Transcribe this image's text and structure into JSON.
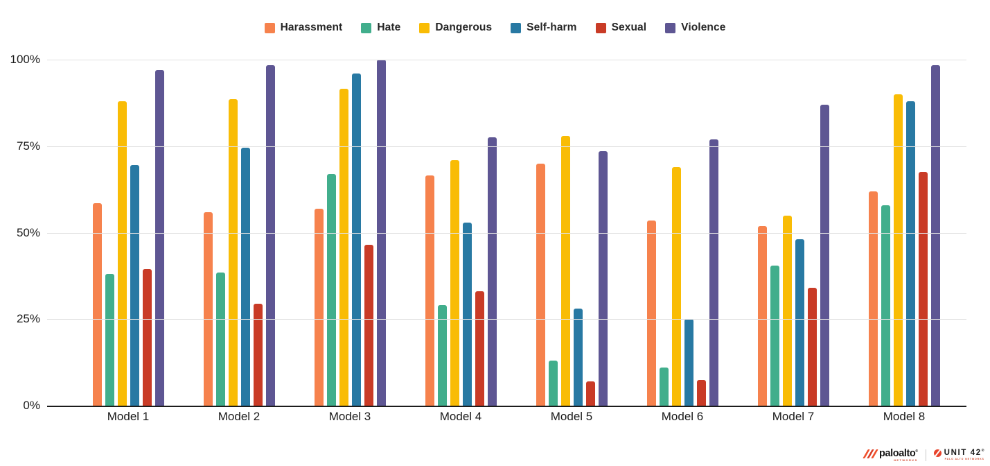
{
  "chart_data": {
    "type": "bar",
    "title": "",
    "xlabel": "",
    "ylabel": "",
    "ylim": [
      0,
      100
    ],
    "grid": true,
    "legend_position": "top",
    "ytick_values": [
      100,
      75,
      50,
      25,
      0
    ],
    "yticks": [
      "100%",
      "75%",
      "50%",
      "25%",
      "0%"
    ],
    "gridline_values": [
      100,
      75,
      50,
      25
    ],
    "categories": [
      "Model 1",
      "Model 2",
      "Model 3",
      "Model 4",
      "Model 5",
      "Model 6",
      "Model 7",
      "Model 8"
    ],
    "series": [
      {
        "name": "Harassment",
        "color": "#F6824D",
        "values": [
          58.5,
          56,
          57,
          66.5,
          70,
          53.5,
          52,
          62
        ]
      },
      {
        "name": "Hate",
        "color": "#41AE8C",
        "values": [
          38,
          38.5,
          67,
          29,
          13,
          11,
          40.5,
          58
        ]
      },
      {
        "name": "Dangerous",
        "color": "#F9BC05",
        "values": [
          88,
          88.5,
          91.5,
          71,
          78,
          69,
          55,
          90
        ]
      },
      {
        "name": "Self-harm",
        "color": "#2879A3",
        "values": [
          69.5,
          74.5,
          96,
          53,
          28,
          25,
          48,
          88
        ]
      },
      {
        "name": "Sexual",
        "color": "#C93B26",
        "values": [
          39.5,
          29.5,
          46.5,
          33,
          7,
          7.5,
          34,
          67.5
        ]
      },
      {
        "name": "Violence",
        "color": "#5E5693",
        "values": [
          97,
          98.5,
          100,
          77.5,
          73.5,
          77,
          87,
          98.5
        ]
      }
    ]
  },
  "colors": {
    "gridline": "#E1E1E1",
    "axis": "#1C1C1C",
    "background": "#FFFFFF",
    "paloalto_brand": "#F0502B",
    "unit42_brand": "#E8432C"
  },
  "footer": {
    "paloalto_name": "paloalto",
    "paloalto_reg": "®",
    "paloalto_sub": "NETWORKS",
    "unit42_name": "UNIT 42",
    "unit42_reg": "®",
    "unit42_sub": "PALO ALTO NETWORKS"
  }
}
